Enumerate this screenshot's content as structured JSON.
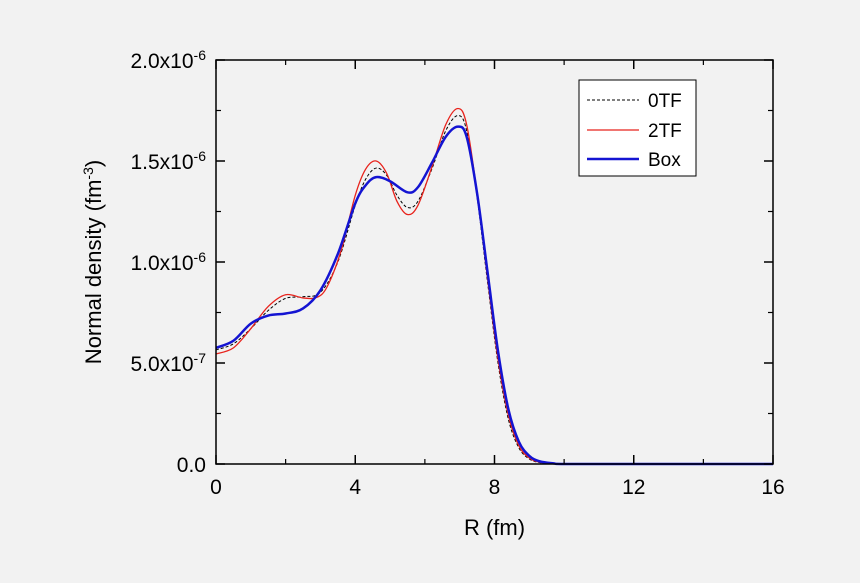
{
  "chart_data": {
    "type": "line",
    "xlabel": "R (fm)",
    "ylabel": {
      "base": "Normal density (fm",
      "sup": "-3",
      "close": ")"
    },
    "xlim": [
      0,
      16
    ],
    "ylim": [
      0,
      2e-06
    ],
    "x_ticks": [
      {
        "value": 0,
        "label": "0"
      },
      {
        "value": 4,
        "label": "4"
      },
      {
        "value": 8,
        "label": "8"
      },
      {
        "value": 12,
        "label": "12"
      },
      {
        "value": 16,
        "label": "16"
      }
    ],
    "y_ticks": [
      {
        "value": 0,
        "label": "0.0",
        "sup": ""
      },
      {
        "value": 5e-07,
        "label": "5.0x10",
        "sup": "-7"
      },
      {
        "value": 1e-06,
        "label": "1.0x10",
        "sup": "-6"
      },
      {
        "value": 1.5e-06,
        "label": "1.5x10",
        "sup": "-6"
      },
      {
        "value": 2e-06,
        "label": "2.0x10",
        "sup": "-6"
      }
    ],
    "grid": false,
    "legend_position": "top-right",
    "series": [
      {
        "name": "0TF",
        "color": "#000000",
        "style": "dashed",
        "points": [
          [
            0,
            5.65e-07
          ],
          [
            0.5,
            5.95e-07
          ],
          [
            1.0,
            6.7e-07
          ],
          [
            1.5,
            7.6e-07
          ],
          [
            2.0,
            8.2e-07
          ],
          [
            2.5,
            8.28e-07
          ],
          [
            3.0,
            8.5e-07
          ],
          [
            3.5,
            1e-06
          ],
          [
            4.0,
            1.28e-06
          ],
          [
            4.3,
            1.41e-06
          ],
          [
            4.6,
            1.465e-06
          ],
          [
            4.9,
            1.43e-06
          ],
          [
            5.2,
            1.33e-06
          ],
          [
            5.5,
            1.27e-06
          ],
          [
            5.8,
            1.3e-06
          ],
          [
            6.2,
            1.46e-06
          ],
          [
            6.6,
            1.65e-06
          ],
          [
            6.95,
            1.725e-06
          ],
          [
            7.2,
            1.65e-06
          ],
          [
            7.5,
            1.32e-06
          ],
          [
            7.8,
            9e-07
          ],
          [
            8.1,
            5e-07
          ],
          [
            8.4,
            2.2e-07
          ],
          [
            8.7,
            8e-08
          ],
          [
            9.0,
            2.5e-08
          ],
          [
            9.3,
            7e-09
          ],
          [
            9.7,
            2e-09
          ],
          [
            10.0,
            0
          ],
          [
            12.0,
            0
          ],
          [
            16.0,
            0
          ]
        ]
      },
      {
        "name": "2TF",
        "color": "#e8231c",
        "style": "solid",
        "points": [
          [
            0,
            5.45e-07
          ],
          [
            0.5,
            5.75e-07
          ],
          [
            1.0,
            6.7e-07
          ],
          [
            1.5,
            7.8e-07
          ],
          [
            2.0,
            8.38e-07
          ],
          [
            2.5,
            8.22e-07
          ],
          [
            2.9,
            8.25e-07
          ],
          [
            3.2,
            8.8e-07
          ],
          [
            3.6,
            1.06e-06
          ],
          [
            4.0,
            1.33e-06
          ],
          [
            4.3,
            1.46e-06
          ],
          [
            4.6,
            1.5e-06
          ],
          [
            4.9,
            1.44e-06
          ],
          [
            5.2,
            1.3e-06
          ],
          [
            5.5,
            1.235e-06
          ],
          [
            5.8,
            1.28e-06
          ],
          [
            6.2,
            1.47e-06
          ],
          [
            6.6,
            1.68e-06
          ],
          [
            6.95,
            1.76e-06
          ],
          [
            7.2,
            1.68e-06
          ],
          [
            7.5,
            1.34e-06
          ],
          [
            7.8,
            9.2e-07
          ],
          [
            8.1,
            5.2e-07
          ],
          [
            8.4,
            2.4e-07
          ],
          [
            8.7,
            9e-08
          ],
          [
            9.0,
            3e-08
          ],
          [
            9.3,
            9e-09
          ],
          [
            9.7,
            2e-09
          ],
          [
            10.0,
            0
          ],
          [
            12.0,
            0
          ],
          [
            16.0,
            0
          ]
        ]
      },
      {
        "name": "Box",
        "color": "#1414d2",
        "style": "solid-thick",
        "points": [
          [
            0,
            5.75e-07
          ],
          [
            0.5,
            6.1e-07
          ],
          [
            1.0,
            6.95e-07
          ],
          [
            1.5,
            7.35e-07
          ],
          [
            2.0,
            7.45e-07
          ],
          [
            2.5,
            7.7e-07
          ],
          [
            3.0,
            8.6e-07
          ],
          [
            3.5,
            1.04e-06
          ],
          [
            4.0,
            1.29e-06
          ],
          [
            4.3,
            1.38e-06
          ],
          [
            4.6,
            1.42e-06
          ],
          [
            5.0,
            1.4e-06
          ],
          [
            5.5,
            1.345e-06
          ],
          [
            5.8,
            1.37e-06
          ],
          [
            6.2,
            1.49e-06
          ],
          [
            6.6,
            1.62e-06
          ],
          [
            6.95,
            1.67e-06
          ],
          [
            7.2,
            1.62e-06
          ],
          [
            7.5,
            1.34e-06
          ],
          [
            7.8,
            9.5e-07
          ],
          [
            8.1,
            5.6e-07
          ],
          [
            8.4,
            2.7e-07
          ],
          [
            8.7,
            1.1e-07
          ],
          [
            9.0,
            4e-08
          ],
          [
            9.3,
            1.3e-08
          ],
          [
            9.7,
            3e-09
          ],
          [
            10.0,
            0
          ],
          [
            12.0,
            0
          ],
          [
            16.0,
            0
          ]
        ]
      }
    ]
  }
}
